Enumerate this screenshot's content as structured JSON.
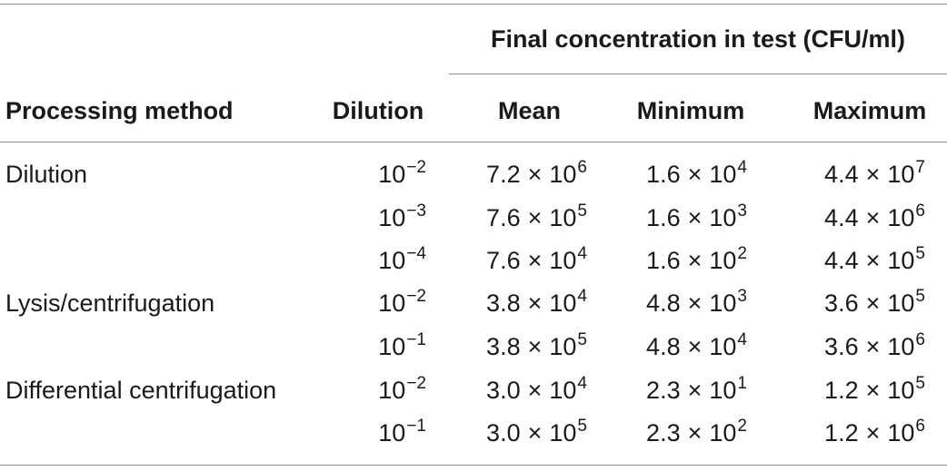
{
  "header": {
    "spanner": "Final concentration in test (CFU/ml)",
    "columns": [
      "Processing method",
      "Dilution",
      "Mean",
      "Minimum",
      "Maximum"
    ]
  },
  "rows": [
    {
      "method": "Dilution",
      "dilution": {
        "base": "10",
        "exp": "−2"
      },
      "mean": {
        "coef": "7.2",
        "exp": "6"
      },
      "min": {
        "coef": "1.6",
        "exp": "4"
      },
      "max": {
        "coef": "4.4",
        "exp": "7"
      }
    },
    {
      "method": "",
      "dilution": {
        "base": "10",
        "exp": "−3"
      },
      "mean": {
        "coef": "7.6",
        "exp": "5"
      },
      "min": {
        "coef": "1.6",
        "exp": "3"
      },
      "max": {
        "coef": "4.4",
        "exp": "6"
      }
    },
    {
      "method": "",
      "dilution": {
        "base": "10",
        "exp": "−4"
      },
      "mean": {
        "coef": "7.6",
        "exp": "4"
      },
      "min": {
        "coef": "1.6",
        "exp": "2"
      },
      "max": {
        "coef": "4.4",
        "exp": "5"
      }
    },
    {
      "method": "Lysis/centrifugation",
      "dilution": {
        "base": "10",
        "exp": "−2"
      },
      "mean": {
        "coef": "3.8",
        "exp": "4"
      },
      "min": {
        "coef": "4.8",
        "exp": "3"
      },
      "max": {
        "coef": "3.6",
        "exp": "5"
      }
    },
    {
      "method": "",
      "dilution": {
        "base": "10",
        "exp": "−1"
      },
      "mean": {
        "coef": "3.8",
        "exp": "5"
      },
      "min": {
        "coef": "4.8",
        "exp": "4"
      },
      "max": {
        "coef": "3.6",
        "exp": "6"
      }
    },
    {
      "method": "Differential centrifugation",
      "dilution": {
        "base": "10",
        "exp": "−2"
      },
      "mean": {
        "coef": "3.0",
        "exp": "4"
      },
      "min": {
        "coef": "2.3",
        "exp": "1"
      },
      "max": {
        "coef": "1.2",
        "exp": "5"
      }
    },
    {
      "method": "",
      "dilution": {
        "base": "10",
        "exp": "−1"
      },
      "mean": {
        "coef": "3.0",
        "exp": "5"
      },
      "min": {
        "coef": "2.3",
        "exp": "2"
      },
      "max": {
        "coef": "1.2",
        "exp": "6"
      }
    }
  ],
  "symbols": {
    "times": "×",
    "base": "10"
  },
  "colors": {
    "text": "#1a1a1a",
    "rule": "#8c8c8c",
    "background": "#ffffff"
  }
}
